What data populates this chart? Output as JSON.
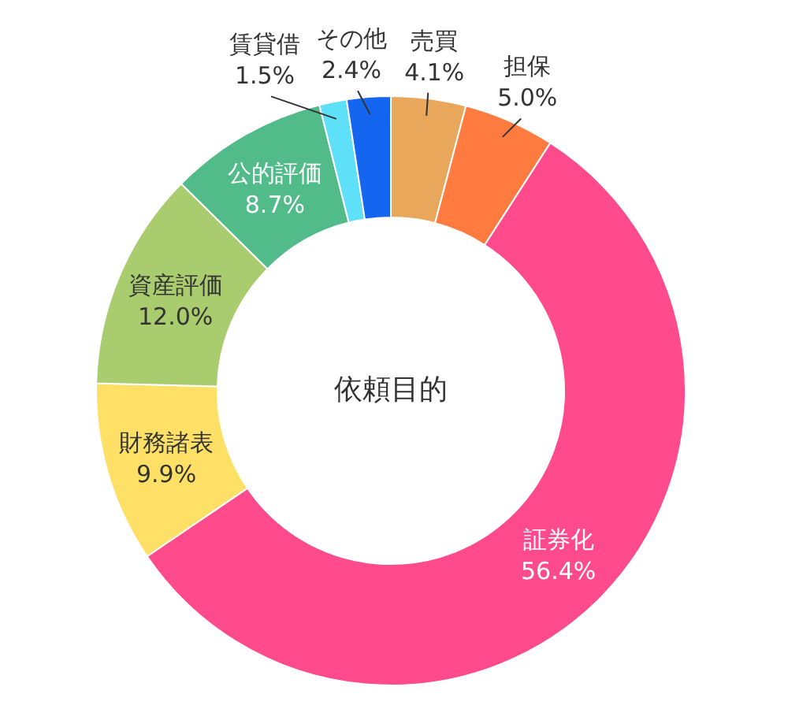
{
  "chart_data": {
    "type": "donut",
    "title": "依頼目的",
    "categories": [
      "売買",
      "担保",
      "証券化",
      "財務諸表",
      "資産評価",
      "公的評価",
      "賃貸借",
      "その他"
    ],
    "values": [
      4.1,
      5.0,
      56.4,
      9.9,
      12.0,
      8.7,
      1.5,
      2.4
    ],
    "value_labels": [
      "4.1%",
      "5.0%",
      "56.4%",
      "9.9%",
      "12.0%",
      "8.7%",
      "1.5%",
      "2.4%"
    ],
    "colors": [
      "#e8a75a",
      "#ff7b3f",
      "#ff4b8b",
      "#ffe066",
      "#a8cc6e",
      "#52bb8a",
      "#5ee0f8",
      "#1466f0"
    ]
  }
}
